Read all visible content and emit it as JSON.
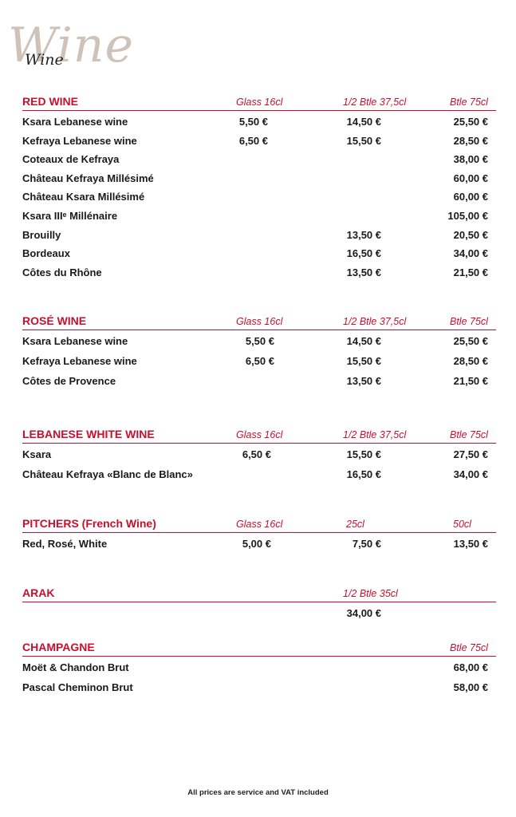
{
  "logo": {
    "big": "Wine",
    "small": "Wine"
  },
  "sections": [
    {
      "title": "RED WINE",
      "columns": [
        "Glass 16cl",
        "1/2 Btle 37,5cl",
        "Btle 75cl"
      ],
      "rows": [
        {
          "name": "Ksara Lebanese wine",
          "prices": [
            "5,50 €",
            "14,50 €",
            "25,50 €"
          ]
        },
        {
          "name": "Kefraya Lebanese wine",
          "prices": [
            "6,50 €",
            "15,50 €",
            "28,50 €"
          ]
        },
        {
          "name": "Coteaux de Kefraya",
          "prices": [
            "",
            "",
            "38,00 €"
          ]
        },
        {
          "name": "Château Kefraya Millésimé",
          "prices": [
            "",
            "",
            "60,00 €"
          ]
        },
        {
          "name": "Château Ksara Millésimé",
          "prices": [
            "",
            "",
            "60,00 €"
          ]
        },
        {
          "name": "Ksara IIIᵉ Millénaire",
          "prices": [
            "",
            "",
            "105,00 €"
          ]
        },
        {
          "name": "Brouilly",
          "prices": [
            "",
            "13,50 €",
            "20,50 €"
          ]
        },
        {
          "name": "Bordeaux",
          "prices": [
            "",
            "16,50 €",
            "34,00 €"
          ]
        },
        {
          "name": "Côtes du Rhône",
          "prices": [
            "",
            "13,50 €",
            "21,50 €"
          ]
        }
      ]
    },
    {
      "title": "ROSÉ WINE",
      "columns": [
        "Glass 16cl",
        "1/2 Btle 37,5cl",
        "Btle 75cl"
      ],
      "rows": [
        {
          "name": "Ksara Lebanese wine",
          "prices": [
            "5,50 €",
            "14,50 €",
            "25,50 €"
          ]
        },
        {
          "name": "Kefraya Lebanese wine",
          "prices": [
            "6,50 €",
            "15,50 €",
            "28,50 €"
          ]
        },
        {
          "name": "Côtes de Provence",
          "prices": [
            "",
            "13,50 €",
            "21,50 €"
          ]
        }
      ]
    },
    {
      "title": "LEBANESE WHITE WINE",
      "columns": [
        "Glass 16cl",
        "1/2 Btle 37,5cl",
        "Btle 75cl"
      ],
      "rows": [
        {
          "name": "Ksara",
          "prices": [
            "6,50 €",
            "15,50 €",
            "27,50 €"
          ]
        },
        {
          "name": "Château Kefraya «Blanc de Blanc»",
          "prices": [
            "",
            "16,50 €",
            "34,00 €"
          ]
        }
      ]
    },
    {
      "title": "PITCHERS (French Wine)",
      "columns": [
        "Glass 16cl",
        "25cl",
        "50cl"
      ],
      "rows": [
        {
          "name": "Red, Rosé, White",
          "prices": [
            "5,00 €",
            "7,50 €",
            "13,50 €"
          ]
        }
      ]
    },
    {
      "title": "ARAK",
      "columns": [
        "",
        "1/2 Btle 35cl",
        ""
      ],
      "rows": [
        {
          "name": "",
          "prices": [
            "",
            "34,00 €",
            ""
          ]
        }
      ]
    },
    {
      "title": "CHAMPAGNE",
      "columns": [
        "",
        "",
        "Btle 75cl"
      ],
      "rows": [
        {
          "name": "Moët & Chandon Brut",
          "prices": [
            "",
            "",
            "68,00 €"
          ]
        },
        {
          "name": "Pascal Cheminon Brut",
          "prices": [
            "",
            "",
            "58,00 €"
          ]
        }
      ]
    }
  ],
  "footer": "All prices are service and VAT included"
}
